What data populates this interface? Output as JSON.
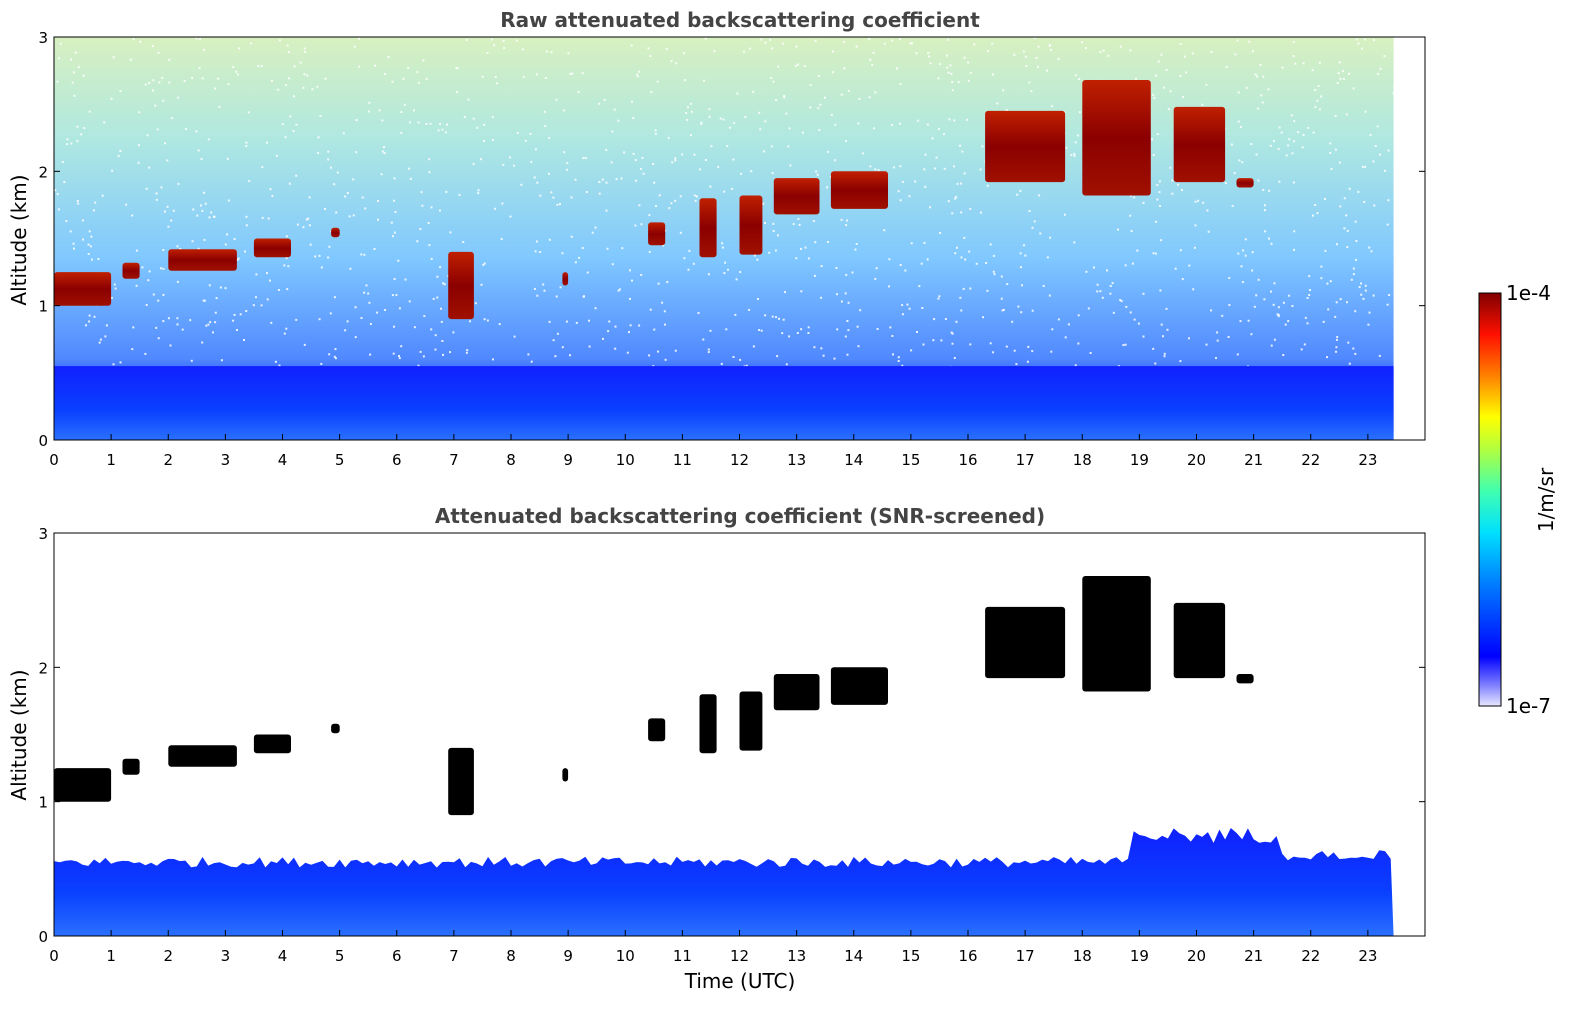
{
  "chart_data": [
    {
      "type": "heatmap",
      "title": "Raw attenuated backscattering coefficient",
      "xlabel": "",
      "ylabel": "Altitude (km)",
      "xlim": [
        0,
        24
      ],
      "ylim": [
        0,
        3
      ],
      "x_ticks": [
        "0",
        "1",
        "2",
        "3",
        "4",
        "5",
        "6",
        "7",
        "8",
        "9",
        "10",
        "11",
        "12",
        "13",
        "14",
        "15",
        "16",
        "17",
        "18",
        "19",
        "20",
        "21",
        "22",
        "23"
      ],
      "y_ticks": [
        "0",
        "1",
        "2",
        "3"
      ],
      "data_end_time": 23.45,
      "cloud_layers": [
        {
          "t_start": 0.0,
          "t_end": 1.0,
          "alt_base": 1.0,
          "alt_top": 1.25
        },
        {
          "t_start": 1.2,
          "t_end": 1.5,
          "alt_base": 1.2,
          "alt_top": 1.32
        },
        {
          "t_start": 2.0,
          "t_end": 3.2,
          "alt_base": 1.26,
          "alt_top": 1.42
        },
        {
          "t_start": 3.5,
          "t_end": 4.15,
          "alt_base": 1.36,
          "alt_top": 1.5
        },
        {
          "t_start": 4.85,
          "t_end": 5.0,
          "alt_base": 1.51,
          "alt_top": 1.58
        },
        {
          "t_start": 6.9,
          "t_end": 7.35,
          "alt_base": 0.9,
          "alt_top": 1.4
        },
        {
          "t_start": 8.9,
          "t_end": 9.0,
          "alt_base": 1.15,
          "alt_top": 1.25
        },
        {
          "t_start": 10.4,
          "t_end": 10.7,
          "alt_base": 1.45,
          "alt_top": 1.62
        },
        {
          "t_start": 11.3,
          "t_end": 11.6,
          "alt_base": 1.36,
          "alt_top": 1.8
        },
        {
          "t_start": 12.0,
          "t_end": 12.4,
          "alt_base": 1.38,
          "alt_top": 1.82
        },
        {
          "t_start": 12.6,
          "t_end": 13.4,
          "alt_base": 1.68,
          "alt_top": 1.95
        },
        {
          "t_start": 13.6,
          "t_end": 14.6,
          "alt_base": 1.72,
          "alt_top": 2.0
        },
        {
          "t_start": 16.3,
          "t_end": 17.7,
          "alt_base": 1.92,
          "alt_top": 2.45
        },
        {
          "t_start": 18.0,
          "t_end": 19.2,
          "alt_base": 1.82,
          "alt_top": 2.68
        },
        {
          "t_start": 19.6,
          "t_end": 20.5,
          "alt_base": 1.92,
          "alt_top": 2.48
        },
        {
          "t_start": 20.7,
          "t_end": 21.0,
          "alt_base": 1.88,
          "alt_top": 1.95
        }
      ],
      "boundary_layer_top_km": 0.55
    },
    {
      "type": "heatmap",
      "title": "Attenuated backscattering coefficient (SNR-screened)",
      "xlabel": "Time (UTC)",
      "ylabel": "Altitude (km)",
      "xlim": [
        0,
        24
      ],
      "ylim": [
        0,
        3
      ],
      "x_ticks": [
        "0",
        "1",
        "2",
        "3",
        "4",
        "5",
        "6",
        "7",
        "8",
        "9",
        "10",
        "11",
        "12",
        "13",
        "14",
        "15",
        "16",
        "17",
        "18",
        "19",
        "20",
        "21",
        "22",
        "23"
      ],
      "y_ticks": [
        "0",
        "1",
        "2",
        "3"
      ],
      "data_end_time": 23.45,
      "boundary_layer_top_km": 0.55,
      "screened_cloud_color": "#000000"
    }
  ],
  "colorbar": {
    "label": "1/m/sr",
    "max_label": "1e-4",
    "min_label": "1e-7",
    "scale": "log",
    "range": [
      1e-07,
      0.0001
    ],
    "colormap": "jet"
  },
  "colors": {
    "cloud": "#8b0000",
    "background_noise": [
      "#0000ff",
      "#1e90ff",
      "#00bfff",
      "#40e0d0",
      "#7fffd4",
      "#adff2f",
      "#ffff00"
    ],
    "boundary_layer": "#1030ff"
  }
}
